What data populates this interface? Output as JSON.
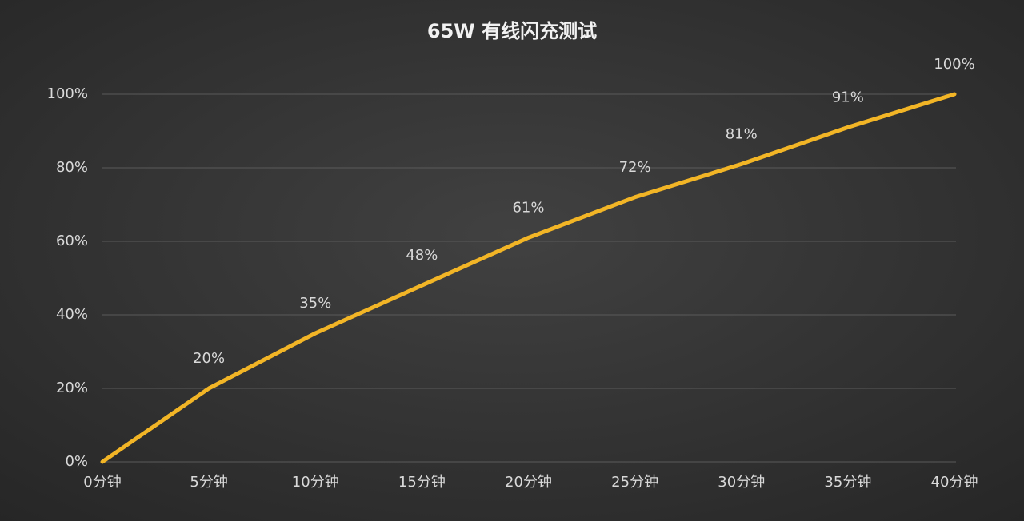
{
  "chart_data": {
    "type": "line",
    "title": "65W 有线闪充测试",
    "categories": [
      "0分钟",
      "5分钟",
      "10分钟",
      "15分钟",
      "20分钟",
      "25分钟",
      "30分钟",
      "35分钟",
      "40分钟"
    ],
    "values": [
      0,
      20,
      35,
      48,
      61,
      72,
      81,
      91,
      100
    ],
    "value_labels": [
      null,
      "20%",
      "35%",
      "48%",
      "61%",
      "72%",
      "81%",
      "91%",
      "100%"
    ],
    "color": "#f2b526",
    "ylim": [
      0,
      100
    ],
    "yticks": [
      {
        "value": 0,
        "label": "0%"
      },
      {
        "value": 20,
        "label": "20%"
      },
      {
        "value": 40,
        "label": "40%"
      },
      {
        "value": 60,
        "label": "60%"
      },
      {
        "value": 80,
        "label": "80%"
      },
      {
        "value": 100,
        "label": "100%"
      }
    ],
    "grid": true
  }
}
